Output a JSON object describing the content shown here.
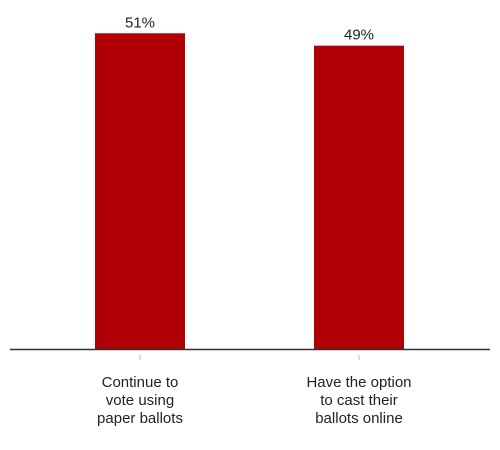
{
  "colors": {
    "bar": "#b00006",
    "axis": "#333333",
    "tick": "#bbbbbb",
    "text": "#222222"
  },
  "chart_data": {
    "type": "bar",
    "title": "",
    "xlabel": "",
    "ylabel": "",
    "ylim": [
      0,
      52.5
    ],
    "grid": false,
    "legend": "none",
    "categories": [
      [
        "Continue to",
        "vote using",
        "paper ballots"
      ],
      [
        "Have the option",
        "to cast their",
        "ballots online"
      ]
    ],
    "values": [
      51,
      49
    ],
    "value_labels": [
      "51%",
      "49%"
    ]
  }
}
